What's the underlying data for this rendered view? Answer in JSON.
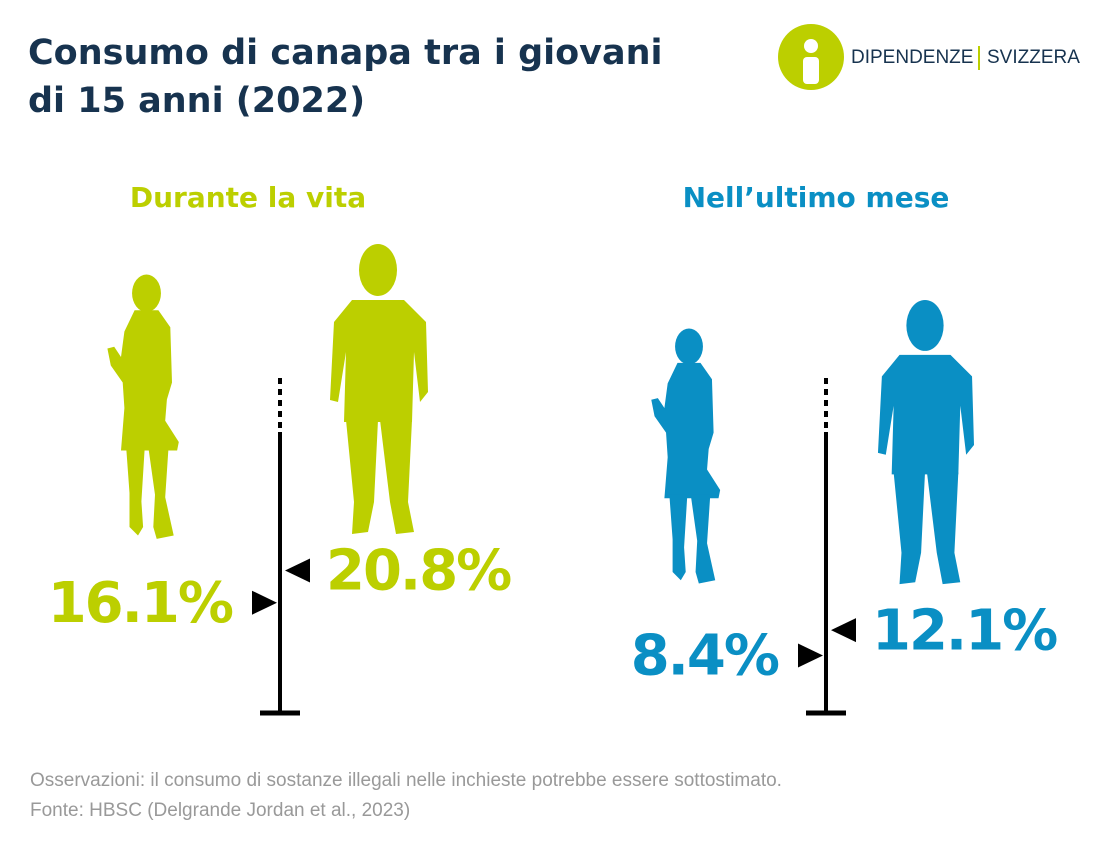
{
  "title": "Consumo di canapa tra i giovani di 15 anni (2022)",
  "logo": {
    "left": "DIPENDENZE",
    "right": "SVIZZERA"
  },
  "chart_data": [
    {
      "type": "marker",
      "title": "Durante la vita",
      "color": "#bccf00",
      "values": [
        16.1,
        20.8
      ],
      "value_labels": [
        "16.1%",
        "20.8%"
      ]
    },
    {
      "type": "marker",
      "title": "Nell’ultimo mese",
      "color": "#0a8fc4",
      "values": [
        8.4,
        12.1
      ],
      "value_labels": [
        "8.4%",
        "12.1%"
      ]
    }
  ],
  "note": "Osservazioni: il consumo di sostanze illegali nelle inchieste potrebbe essere sottostimato.",
  "source": "Fonte: HBSC (Delgrande Jordan et al., 2023)"
}
